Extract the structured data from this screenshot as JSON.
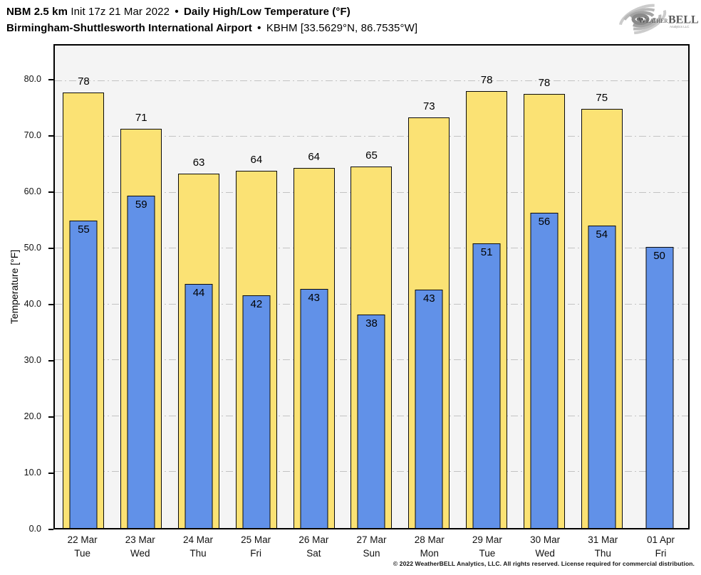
{
  "header": {
    "line1": {
      "model": "NBM 2.5 km",
      "init": "Init 17z 21 Mar 2022",
      "sep": "•",
      "product": "Daily High/Low Temperature (°F)"
    },
    "line2": {
      "station": "Birmingham-Shuttlesworth International Airport",
      "sep": "•",
      "location": "KBHM [33.5629°N, 86.7535°W]"
    }
  },
  "logo": {
    "word_weather": "Weather",
    "word_bell": "BELL",
    "subtext": "Analytics LLC"
  },
  "footer": {
    "copyright": "© 2022 WeatherBELL Analytics, LLC. All rights reserved. License required for commercial distribution."
  },
  "chart_data": {
    "type": "bar",
    "title": "NBM 2.5 km Init 17z 21 Mar 2022 • Daily High/Low Temperature (°F)",
    "subtitle": "Birmingham-Shuttlesworth International Airport • KBHM [33.5629°N, 86.7535°W]",
    "ylabel": "Temperature [°F]",
    "xlabel": "",
    "ylim": [
      0,
      86.3
    ],
    "grid": "horizontal dash-dot gridlines every 10°F",
    "legend_position": "none",
    "plot_background": "#F4F4F4",
    "grid_color": "#C3C3C3",
    "bar_border_color": "#0A0A0A",
    "yticks": [
      {
        "value": 0,
        "label": "0.0"
      },
      {
        "value": 10,
        "label": "10.0"
      },
      {
        "value": 20,
        "label": "20.0"
      },
      {
        "value": 30,
        "label": "30.0"
      },
      {
        "value": 40,
        "label": "40.0"
      },
      {
        "value": 50,
        "label": "50.0"
      },
      {
        "value": 60,
        "label": "60.0"
      },
      {
        "value": 70,
        "label": "70.0"
      },
      {
        "value": 80,
        "label": "80.0"
      }
    ],
    "categories": [
      {
        "date": "22 Mar",
        "day": "Tue"
      },
      {
        "date": "23 Mar",
        "day": "Wed"
      },
      {
        "date": "24 Mar",
        "day": "Thu"
      },
      {
        "date": "25 Mar",
        "day": "Fri"
      },
      {
        "date": "26 Mar",
        "day": "Sat"
      },
      {
        "date": "27 Mar",
        "day": "Sun"
      },
      {
        "date": "28 Mar",
        "day": "Mon"
      },
      {
        "date": "29 Mar",
        "day": "Tue"
      },
      {
        "date": "30 Mar",
        "day": "Wed"
      },
      {
        "date": "31 Mar",
        "day": "Thu"
      },
      {
        "date": "01 Apr",
        "day": "Fri"
      }
    ],
    "series": [
      {
        "name": "Daily High",
        "color": "#FBE274",
        "values": [
          78,
          71,
          63,
          64,
          64,
          65,
          73,
          78,
          78,
          75,
          null
        ],
        "drawn_values": [
          77.9,
          71.4,
          63.4,
          63.9,
          64.4,
          64.6,
          73.4,
          78.1,
          77.6,
          75.0,
          null
        ]
      },
      {
        "name": "Daily Low",
        "color": "#6191E8",
        "values": [
          55,
          59,
          44,
          42,
          43,
          38,
          43,
          51,
          56,
          54,
          50
        ],
        "drawn_values": [
          55.0,
          59.4,
          43.7,
          41.6,
          42.8,
          38.2,
          42.6,
          50.9,
          56.4,
          54.1,
          50.3
        ]
      }
    ]
  }
}
